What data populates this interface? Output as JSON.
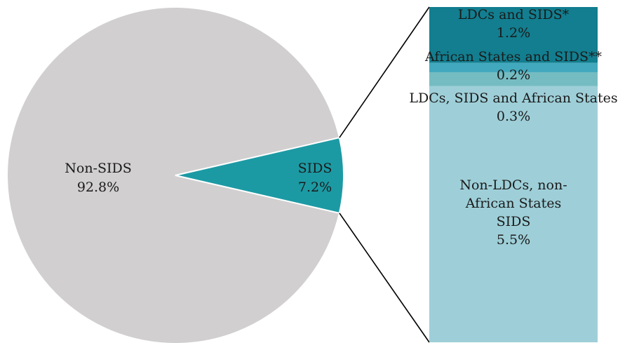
{
  "chart_data": {
    "type": "pie",
    "main": {
      "slices": [
        {
          "label": "Non-SIDS",
          "value": 92.8,
          "display": "92.8%",
          "color": "#d1cfd0"
        },
        {
          "label": "SIDS",
          "value": 7.2,
          "display": "7.2%",
          "color": "#1c9aa4"
        }
      ]
    },
    "breakdown": {
      "of": "SIDS",
      "type": "stacked-bar",
      "segments": [
        {
          "lines": [
            "LDCs and SIDS*"
          ],
          "value": 1.2,
          "display": "1.2%",
          "color": "#127e8f"
        },
        {
          "lines": [
            "African States and SIDS**"
          ],
          "value": 0.2,
          "display": "0.2%",
          "color": "#42a8bd"
        },
        {
          "lines": [
            "LDCs, SIDS and African States"
          ],
          "value": 0.3,
          "display": "0.3%",
          "color": "#75bcc2"
        },
        {
          "lines": [
            "Non-LDCs, non-",
            "African States",
            "SIDS"
          ],
          "value": 5.5,
          "display": "5.5%",
          "color": "#9ecfd8"
        }
      ]
    }
  }
}
